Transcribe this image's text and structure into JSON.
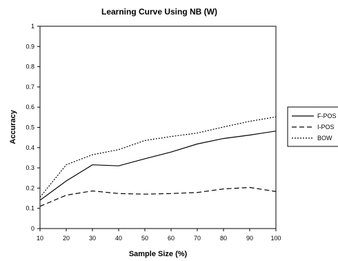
{
  "chart_data": {
    "type": "line",
    "title": "Learning Curve Using NB (W)",
    "xlabel": "Sample Size (%)",
    "ylabel": "Accuracy",
    "x": [
      10,
      20,
      30,
      40,
      50,
      60,
      70,
      80,
      90,
      100
    ],
    "xlim": [
      10,
      100
    ],
    "ylim": [
      0,
      1
    ],
    "x_ticks": [
      "10",
      "20",
      "30",
      "40",
      "50",
      "60",
      "70",
      "80",
      "90",
      "100"
    ],
    "y_ticks": [
      "0",
      "0.1",
      "0.2",
      "0.3",
      "0.4",
      "0.5",
      "0.6",
      "0.7",
      "0.8",
      "0.9",
      "1"
    ],
    "grid": false,
    "legend_position": "right",
    "series": [
      {
        "name": "F-POS",
        "style": "solid",
        "values": [
          0.14,
          0.235,
          0.315,
          0.31,
          0.345,
          0.378,
          0.418,
          0.445,
          0.462,
          0.482
        ]
      },
      {
        "name": "I-POS",
        "style": "dashed",
        "values": [
          0.11,
          0.165,
          0.186,
          0.173,
          0.17,
          0.173,
          0.178,
          0.196,
          0.203,
          0.183
        ]
      },
      {
        "name": "BOW",
        "style": "dotted",
        "values": [
          0.155,
          0.315,
          0.365,
          0.39,
          0.435,
          0.455,
          0.472,
          0.502,
          0.53,
          0.552
        ]
      }
    ]
  }
}
